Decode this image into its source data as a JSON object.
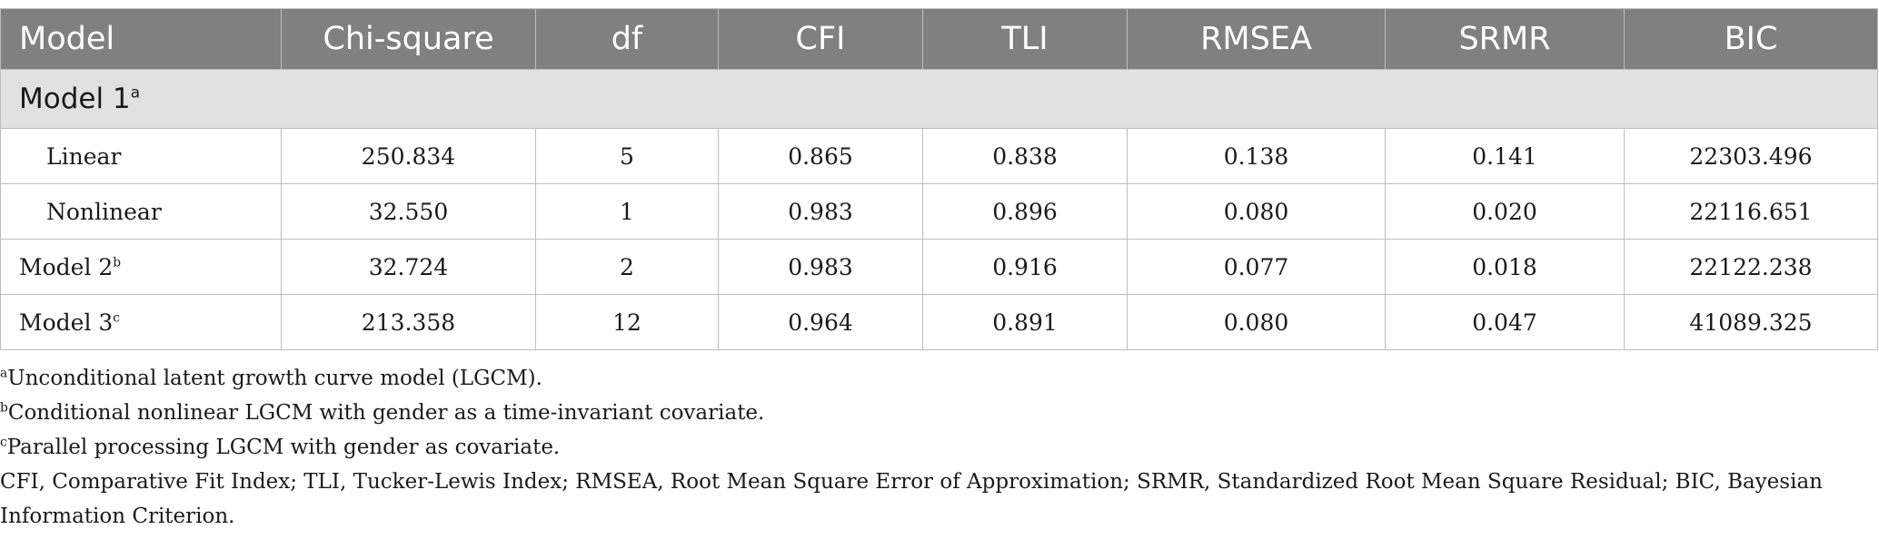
{
  "table": {
    "headers": [
      "Model",
      "Chi-square",
      "df",
      "CFI",
      "TLI",
      "RMSEA",
      "SRMR",
      "BIC"
    ],
    "section": {
      "label": "Model 1",
      "sup": "a"
    },
    "rows": [
      {
        "model": "Linear",
        "sup": "",
        "indent": true,
        "values": [
          "250.834",
          "5",
          "0.865",
          "0.838",
          "0.138",
          "0.141",
          "22303.496"
        ]
      },
      {
        "model": "Nonlinear",
        "sup": "",
        "indent": true,
        "values": [
          "32.550",
          "1",
          "0.983",
          "0.896",
          "0.080",
          "0.020",
          "22116.651"
        ]
      },
      {
        "model": "Model 2",
        "sup": "b",
        "indent": false,
        "values": [
          "32.724",
          "2",
          "0.983",
          "0.916",
          "0.077",
          "0.018",
          "22122.238"
        ]
      },
      {
        "model": "Model 3",
        "sup": "c",
        "indent": false,
        "values": [
          "213.358",
          "12",
          "0.964",
          "0.891",
          "0.080",
          "0.047",
          "41089.325"
        ]
      }
    ]
  },
  "notes": {
    "a": {
      "sup": "a",
      "text": "Unconditional latent growth curve model (LGCM)."
    },
    "b": {
      "sup": "b",
      "text": "Conditional nonlinear LGCM with gender as a time-invariant covariate."
    },
    "c": {
      "sup": "c",
      "text": "Parallel processing LGCM with gender as covariate."
    },
    "abbreviations": "CFI, Comparative Fit Index; TLI, Tucker-Lewis Index; RMSEA, Root Mean Square Error of Approximation; SRMR, Standardized Root Mean Square Residual; BIC, Bayesian Information Criterion."
  },
  "colors": {
    "header_bg": "#7f807f",
    "section_bg": "#e1e1e2",
    "border": "#bdbdbd"
  }
}
